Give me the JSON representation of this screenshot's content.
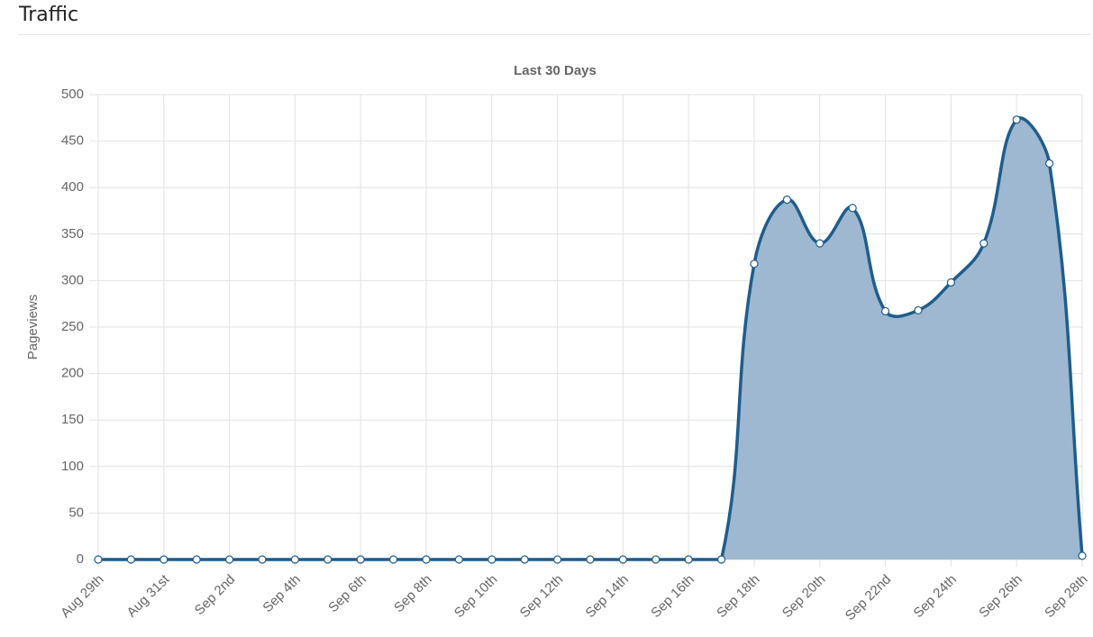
{
  "header": {
    "title": "Traffic"
  },
  "chart_data": {
    "type": "area",
    "title": "Last 30 Days",
    "y_label": "Pageviews",
    "categories": [
      "Aug 29th",
      null,
      "Aug 31st",
      null,
      "Sep 2nd",
      null,
      "Sep 4th",
      null,
      "Sep 6th",
      null,
      "Sep 8th",
      null,
      "Sep 10th",
      null,
      "Sep 12th",
      null,
      "Sep 14th",
      null,
      "Sep 16th",
      null,
      "Sep 18th",
      null,
      "Sep 20th",
      null,
      "Sep 22nd",
      null,
      "Sep 24th",
      null,
      "Sep 26th",
      null,
      "Sep 28th"
    ],
    "values": [
      0,
      0,
      0,
      0,
      0,
      0,
      0,
      0,
      0,
      0,
      0,
      0,
      0,
      0,
      0,
      0,
      0,
      0,
      0,
      0,
      318,
      387,
      340,
      378,
      267,
      268,
      298,
      340,
      473,
      426,
      4
    ],
    "color": "#1f5d8c",
    "fill": "#9db8d0",
    "ylim": [
      0,
      500
    ],
    "yticks": [
      0,
      50,
      100,
      150,
      200,
      250,
      300,
      350,
      400,
      450,
      500
    ],
    "grid": true
  }
}
